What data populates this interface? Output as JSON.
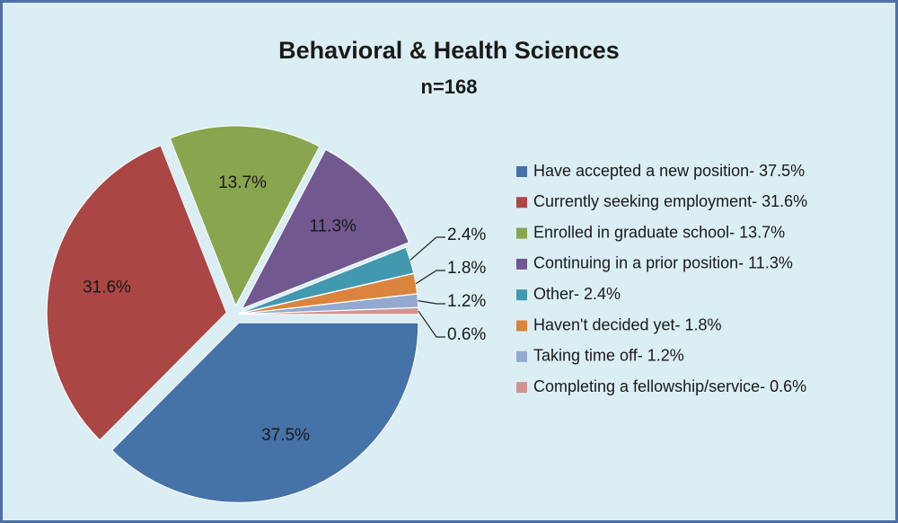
{
  "chart_data": {
    "type": "pie",
    "title": "Behavioral & Health Sciences",
    "subtitle": "n=168",
    "categories": [
      "Have accepted a new position- 37.5%",
      "Currently seeking employment- 31.6%",
      "Enrolled in graduate school- 13.7%",
      "Continuing in a prior position- 11.3%",
      "Other- 2.4%",
      "Haven't decided yet- 1.8%",
      "Taking time off- 1.2%",
      "Completing a fellowship/service- 0.6%"
    ],
    "values": [
      37.5,
      31.6,
      13.7,
      11.3,
      2.4,
      1.8,
      1.2,
      0.6
    ],
    "value_labels": [
      "37.5%",
      "31.6%",
      "13.7%",
      "11.3%",
      "2.4%",
      "1.8%",
      "1.2%",
      "0.6%"
    ],
    "colors": [
      "#4572a7",
      "#aa4643",
      "#89a54e",
      "#71588f",
      "#4198af",
      "#db843d",
      "#93a9cf",
      "#d19392"
    ],
    "legend": "right"
  }
}
